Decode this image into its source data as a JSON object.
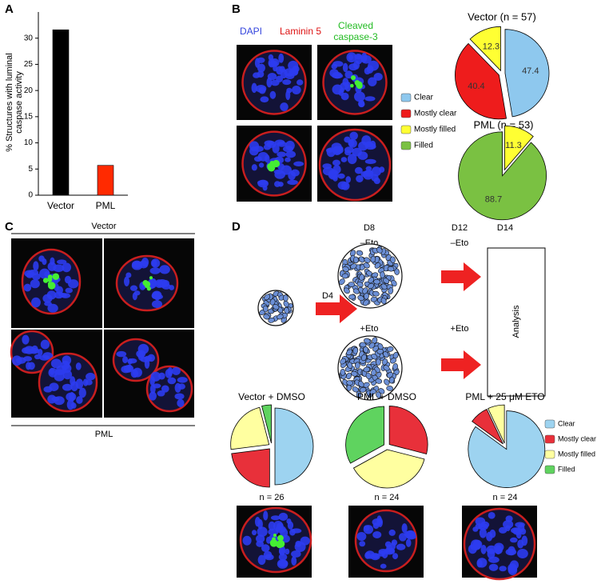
{
  "chart_data": [
    {
      "type": "bar",
      "ylabel": [
        "% Structures with luminal",
        "caspase activity"
      ],
      "categories": [
        "Vector",
        "PML"
      ],
      "values": [
        31.6,
        5.7
      ],
      "colors": [
        "#000000",
        "#ff2a00"
      ],
      "ylim": [
        0,
        35
      ],
      "yticks": [
        0,
        5,
        10,
        15,
        20,
        25,
        30
      ]
    },
    {
      "type": "pie",
      "title": "Vector (n = 57)",
      "categories": [
        "Clear",
        "Mostly clear",
        "Mostly filled"
      ],
      "values": [
        47.4,
        40.4,
        12.3
      ],
      "colors": [
        "#8ec8ee",
        "#ee1c1c",
        "#ffff33"
      ],
      "show_values": true
    },
    {
      "type": "pie",
      "title": "PML (n = 53)",
      "categories": [
        "Mostly filled",
        "Filled"
      ],
      "values": [
        11.3,
        88.7
      ],
      "colors": [
        "#ffff33",
        "#7ac142"
      ],
      "show_values": true
    },
    {
      "type": "pie",
      "title": "Vector + DMSO",
      "n_label": "n = 26",
      "categories": [
        "Clear",
        "Mostly clear",
        "Mostly filled",
        "Filled"
      ],
      "values": [
        50,
        23,
        23,
        4
      ],
      "colors": [
        "#9dd3f0",
        "#e8303a",
        "#ffffa0",
        "#5fd35f"
      ],
      "show_values": false
    },
    {
      "type": "pie",
      "title": "PML + DMSO",
      "n_label": "n = 24",
      "categories": [
        "Mostly clear",
        "Mostly filled",
        "Filled"
      ],
      "values": [
        29,
        38,
        33
      ],
      "colors": [
        "#e8303a",
        "#ffffa0",
        "#5fd35f"
      ],
      "show_values": false
    },
    {
      "type": "pie",
      "title": "PML + 25 μM ETO",
      "n_label": "n = 24",
      "categories": [
        "Clear",
        "Mostly clear",
        "Mostly filled"
      ],
      "values": [
        85,
        8,
        7
      ],
      "colors": [
        "#9dd3f0",
        "#e8303a",
        "#ffffa0"
      ],
      "show_values": false
    }
  ],
  "legends": [
    {
      "labels": [
        "Clear",
        "Mostly clear",
        "Mostly filled",
        "Filled"
      ],
      "colors": [
        "#8ec8ee",
        "#ee1c1c",
        "#ffff33",
        "#7ac142"
      ]
    },
    {
      "labels": [
        "Clear",
        "Mostly clear",
        "Mostly filled",
        "Filled"
      ],
      "colors": [
        "#9dd3f0",
        "#e8303a",
        "#ffffa0",
        "#5fd35f"
      ]
    }
  ],
  "figure": {
    "panel_labels": [
      "A",
      "B",
      "C",
      "D"
    ],
    "stains": [
      "DAPI",
      "Laminin 5",
      "Cleaved",
      "caspase-3"
    ],
    "c_top": "Vector",
    "c_bottom": "PML",
    "days": [
      "D4",
      "D8",
      "D12",
      "D14"
    ],
    "minus_eto": "–Eto",
    "plus_eto": "+Eto",
    "analysis": "Analysis"
  }
}
